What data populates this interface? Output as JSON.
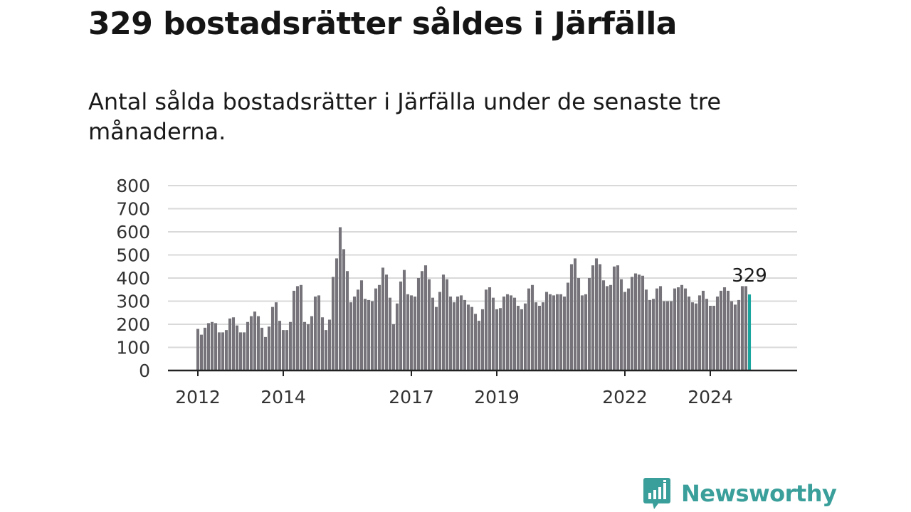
{
  "title": "329 bostadsrätter såldes i Järfälla",
  "subtitle": "Antal sålda bostadsrätter i Järfälla under de senaste tre månaderna.",
  "brand": {
    "name": "Newsworthy"
  },
  "colors": {
    "bar": "#76747a",
    "highlight": "#1aa69e",
    "grid": "#d9d9d9",
    "axis": "#222222",
    "brand": "#3a9f9a"
  },
  "chart_data": {
    "type": "bar",
    "title": "329 bostadsrätter såldes i Järfälla",
    "subtitle": "Antal sålda bostadsrätter i Järfälla under de senaste tre månaderna.",
    "xlabel": "",
    "ylabel": "",
    "ylim": [
      0,
      800
    ],
    "yticks": [
      "0",
      "100",
      "200",
      "300",
      "400",
      "500",
      "600",
      "700",
      "800"
    ],
    "grid": true,
    "start": "2012-01",
    "xticks": [
      {
        "label": "2012",
        "index": 0
      },
      {
        "label": "2014",
        "index": 24
      },
      {
        "label": "2017",
        "index": 60
      },
      {
        "label": "2019",
        "index": 84
      },
      {
        "label": "2022",
        "index": 120
      },
      {
        "label": "2024",
        "index": 144
      }
    ],
    "highlight_index": 155,
    "highlight_label": "329",
    "values": [
      180,
      155,
      185,
      205,
      210,
      205,
      165,
      165,
      175,
      225,
      230,
      195,
      165,
      165,
      210,
      235,
      255,
      235,
      185,
      145,
      190,
      275,
      295,
      215,
      175,
      175,
      210,
      345,
      365,
      370,
      210,
      200,
      235,
      320,
      325,
      230,
      175,
      220,
      405,
      485,
      620,
      525,
      430,
      295,
      320,
      350,
      390,
      310,
      305,
      300,
      355,
      370,
      445,
      415,
      315,
      200,
      290,
      385,
      435,
      330,
      325,
      320,
      400,
      430,
      455,
      395,
      315,
      275,
      340,
      415,
      395,
      320,
      295,
      320,
      325,
      305,
      285,
      275,
      245,
      215,
      265,
      350,
      360,
      315,
      265,
      270,
      320,
      330,
      325,
      315,
      280,
      265,
      290,
      355,
      370,
      295,
      280,
      295,
      340,
      330,
      325,
      330,
      330,
      320,
      380,
      460,
      485,
      400,
      325,
      330,
      400,
      455,
      485,
      460,
      390,
      365,
      370,
      450,
      455,
      395,
      340,
      355,
      405,
      420,
      415,
      410,
      350,
      305,
      310,
      355,
      365,
      300,
      300,
      300,
      355,
      360,
      370,
      355,
      320,
      295,
      290,
      325,
      345,
      310,
      280,
      280,
      320,
      345,
      360,
      345,
      300,
      285,
      305,
      365,
      365,
      329
    ]
  }
}
